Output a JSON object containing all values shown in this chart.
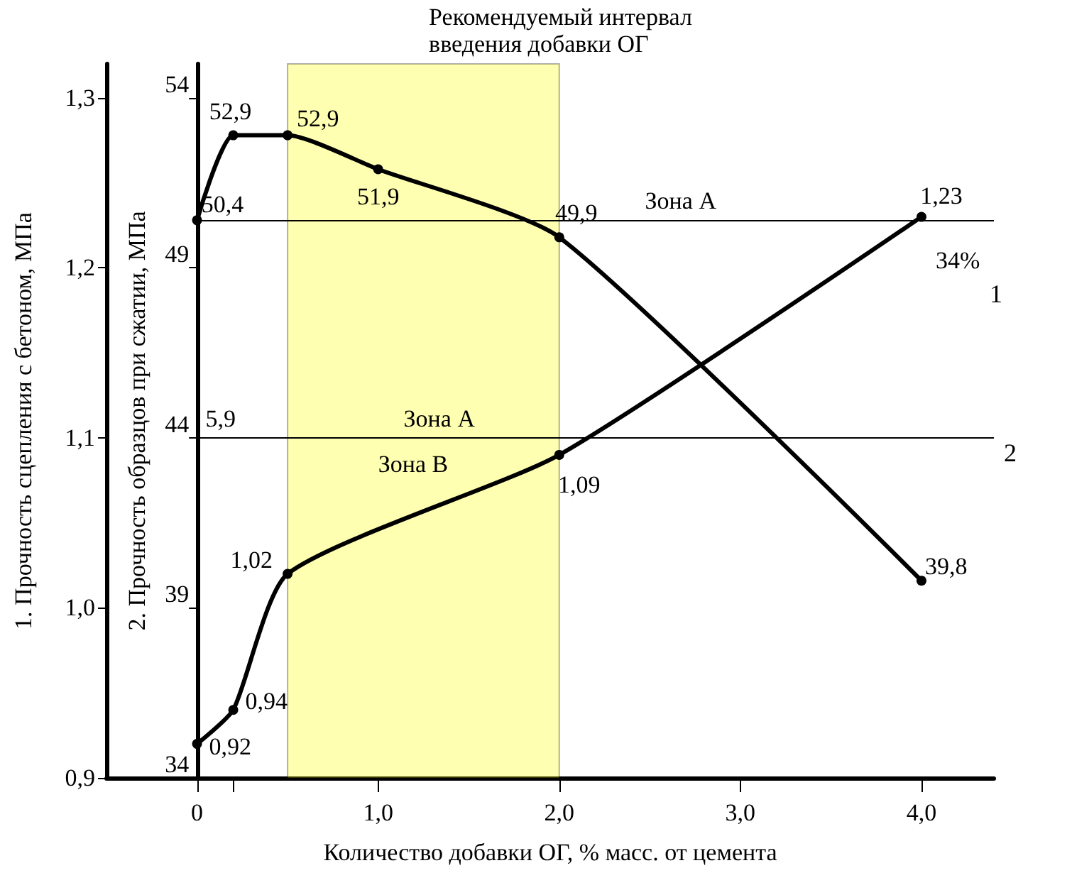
{
  "chart_data": {
    "type": "line",
    "xlabel": "Количество добавки ОГ, % масс. от цемента",
    "ylabel": "1. Прочность сцепления с бетоном, МПа",
    "y2label": "2. Прочность образцов при сжатии, МПа",
    "xlim": [
      -0.5,
      4.4
    ],
    "xticks": [
      0,
      {
        "value": 0.2,
        "label": null
      },
      {
        "value": 1,
        "label": "1,0"
      },
      {
        "value": 2,
        "label": "2,0"
      },
      {
        "value": 3,
        "label": "3,0"
      },
      {
        "value": 4,
        "label": "4,0"
      }
    ],
    "ylim": [
      0.9,
      1.32
    ],
    "yticks": [
      {
        "value": 0.9,
        "label": "0,9"
      },
      {
        "value": 1.0,
        "label": "1,0"
      },
      {
        "value": 1.1,
        "label": "1,1"
      },
      {
        "value": 1.2,
        "label": "1,2"
      },
      {
        "value": 1.3,
        "label": "1,3"
      }
    ],
    "y2lim": [
      34,
      55
    ],
    "y2ticks": [
      34,
      39,
      44,
      49,
      54
    ],
    "marker": "circle",
    "series": [
      {
        "name": "1",
        "color": "#000000",
        "x": [
          0,
          0.2,
          0.5,
          2,
          4
        ],
        "values": [
          0.92,
          0.94,
          1.02,
          1.09,
          1.23
        ],
        "value_labels": [
          "0,92",
          "0,94",
          "1,02",
          "1,09",
          "1,23"
        ]
      },
      {
        "name": "2",
        "color": "#000000",
        "axis": "y2",
        "x": [
          0,
          0.2,
          0.5,
          1,
          2,
          4
        ],
        "values": [
          50.4,
          52.9,
          52.9,
          51.9,
          49.9,
          39.8
        ],
        "value_labels": [
          "50,4",
          "52,9",
          "52,9",
          "51,9",
          "49,9",
          "39,8"
        ]
      }
    ],
    "ref_lines": [
      {
        "axis": "y2",
        "value": 50.4,
        "label": "Зона А",
        "color": "#000000"
      },
      {
        "axis": "y",
        "value": 1.1,
        "label": "Зона А",
        "color": "#000000"
      }
    ],
    "bands": [
      {
        "axis": "x",
        "from": 0.5,
        "to": 2,
        "label": "Рекомендуемый интервал введения добавки ОГ",
        "color": "#ffff00"
      }
    ],
    "annotations": [
      {
        "text": "34%",
        "x": 4,
        "y": 1.23
      },
      "5,9",
      "Зона В"
    ]
  }
}
